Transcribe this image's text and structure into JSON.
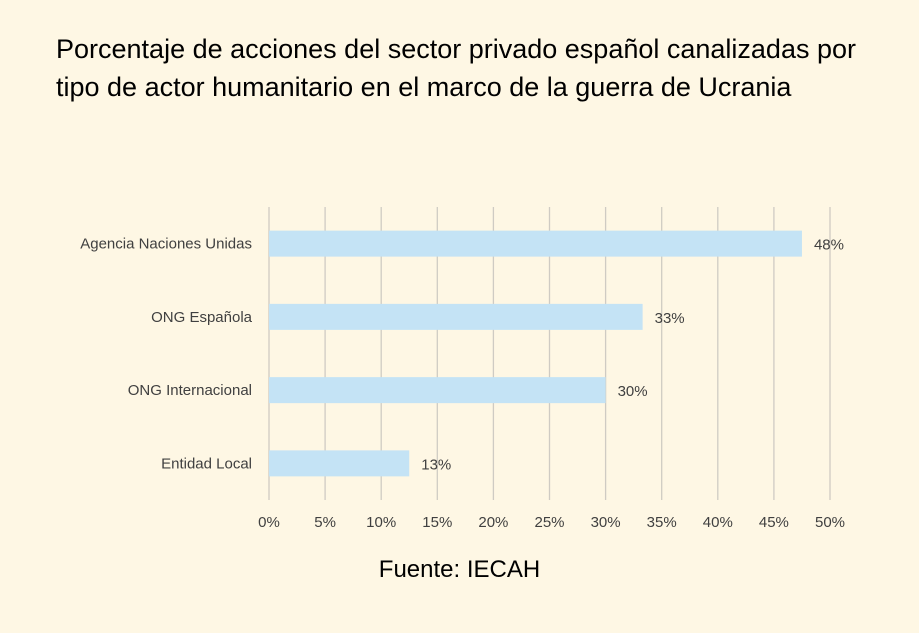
{
  "chart_data": {
    "type": "bar",
    "orientation": "horizontal",
    "title": "Porcentaje de acciones del sector privado español canalizadas por tipo de actor humanitario en el marco de la guerra de Ucrania",
    "source": "Fuente: IECAH",
    "categories": [
      "Agencia Naciones Unidas",
      "ONG Española",
      "ONG Internacional",
      "Entidad Local"
    ],
    "values": [
      47.5,
      33.3,
      30.0,
      12.5
    ],
    "data_labels": [
      "48%",
      "33%",
      "30%",
      "13%"
    ],
    "xlim": [
      0,
      50
    ],
    "x_ticks": [
      0,
      5,
      10,
      15,
      20,
      25,
      30,
      35,
      40,
      45,
      50
    ],
    "x_tick_labels": [
      "0%",
      "5%",
      "10%",
      "15%",
      "20%",
      "25%",
      "30%",
      "35%",
      "40%",
      "45%",
      "50%"
    ],
    "grid": "vertical",
    "legend": "none",
    "xlabel": "",
    "ylabel": "",
    "colors": {
      "bar": "#c4e3f5",
      "grid": "#cfcbc3",
      "text": "#404040",
      "background": "#fef7e4"
    }
  }
}
